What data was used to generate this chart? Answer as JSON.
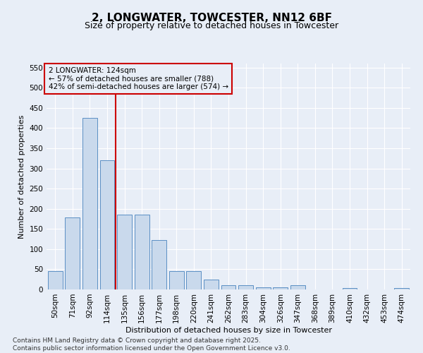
{
  "title": "2, LONGWATER, TOWCESTER, NN12 6BF",
  "subtitle": "Size of property relative to detached houses in Towcester",
  "xlabel": "Distribution of detached houses by size in Towcester",
  "ylabel": "Number of detached properties",
  "categories": [
    "50sqm",
    "71sqm",
    "92sqm",
    "114sqm",
    "135sqm",
    "156sqm",
    "177sqm",
    "198sqm",
    "220sqm",
    "241sqm",
    "262sqm",
    "283sqm",
    "304sqm",
    "326sqm",
    "347sqm",
    "368sqm",
    "389sqm",
    "410sqm",
    "432sqm",
    "453sqm",
    "474sqm"
  ],
  "values": [
    45,
    178,
    425,
    320,
    185,
    185,
    122,
    46,
    46,
    25,
    11,
    10,
    6,
    5,
    10,
    0,
    0,
    4,
    0,
    0,
    4
  ],
  "bar_color": "#c9d9ec",
  "bar_edge_color": "#5b8fc4",
  "background_color": "#e8eef7",
  "grid_color": "#ffffff",
  "annotation_line1": "2 LONGWATER: 124sqm",
  "annotation_line2": "← 57% of detached houses are smaller (788)",
  "annotation_line3": "42% of semi-detached houses are larger (574) →",
  "annotation_box_color": "#cc0000",
  "vline_x_index": 3,
  "ylim": [
    0,
    560
  ],
  "yticks": [
    0,
    50,
    100,
    150,
    200,
    250,
    300,
    350,
    400,
    450,
    500,
    550
  ],
  "footer": "Contains HM Land Registry data © Crown copyright and database right 2025.\nContains public sector information licensed under the Open Government Licence v3.0.",
  "title_fontsize": 11,
  "subtitle_fontsize": 9,
  "axis_label_fontsize": 8,
  "tick_fontsize": 7.5,
  "annotation_fontsize": 7.5,
  "footer_fontsize": 6.5
}
